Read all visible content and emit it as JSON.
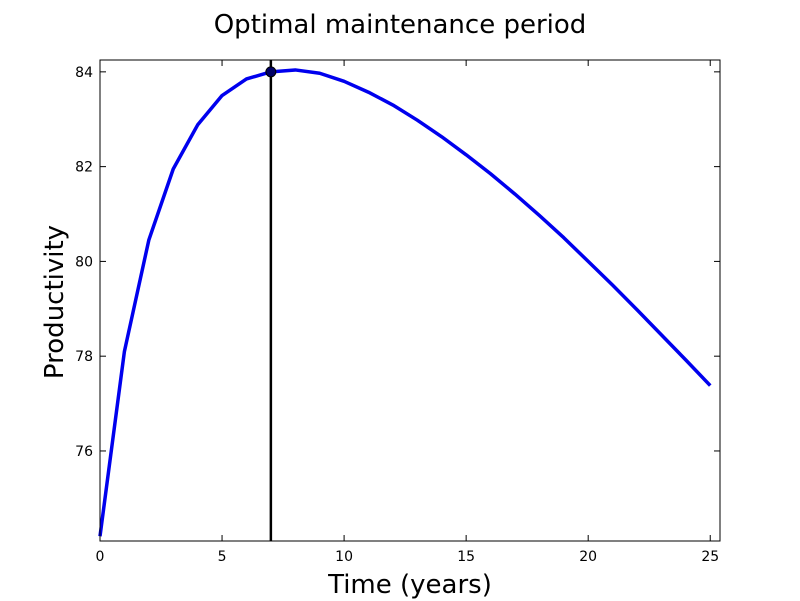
{
  "chart_data": {
    "type": "line",
    "title": "Optimal maintenance period",
    "xlabel": "Time (years)",
    "ylabel": "Productivity",
    "xlim": [
      0,
      25.4
    ],
    "ylim": [
      74.1,
      84.25
    ],
    "xticks": [
      0,
      5,
      10,
      15,
      20,
      25
    ],
    "yticks": [
      76,
      78,
      80,
      82,
      84
    ],
    "grid": false,
    "series": [
      {
        "color": "#0000ee",
        "x": [
          0,
          1,
          2,
          3,
          4,
          5,
          6,
          7,
          8,
          9,
          10,
          11,
          12,
          13,
          14,
          15,
          16,
          17,
          18,
          19,
          20,
          21,
          22,
          23,
          24,
          25
        ],
        "y": [
          74.2,
          78.1,
          80.45,
          81.95,
          82.88,
          83.5,
          83.85,
          84.0,
          84.04,
          83.97,
          83.8,
          83.57,
          83.3,
          82.98,
          82.63,
          82.25,
          81.85,
          81.42,
          80.97,
          80.5,
          80.0,
          79.5,
          78.98,
          78.45,
          77.92,
          77.38
        ]
      }
    ],
    "marker": {
      "x": 7,
      "y": 84.0,
      "color": "#000066"
    },
    "vline": {
      "x": 7,
      "color": "#000000"
    }
  }
}
